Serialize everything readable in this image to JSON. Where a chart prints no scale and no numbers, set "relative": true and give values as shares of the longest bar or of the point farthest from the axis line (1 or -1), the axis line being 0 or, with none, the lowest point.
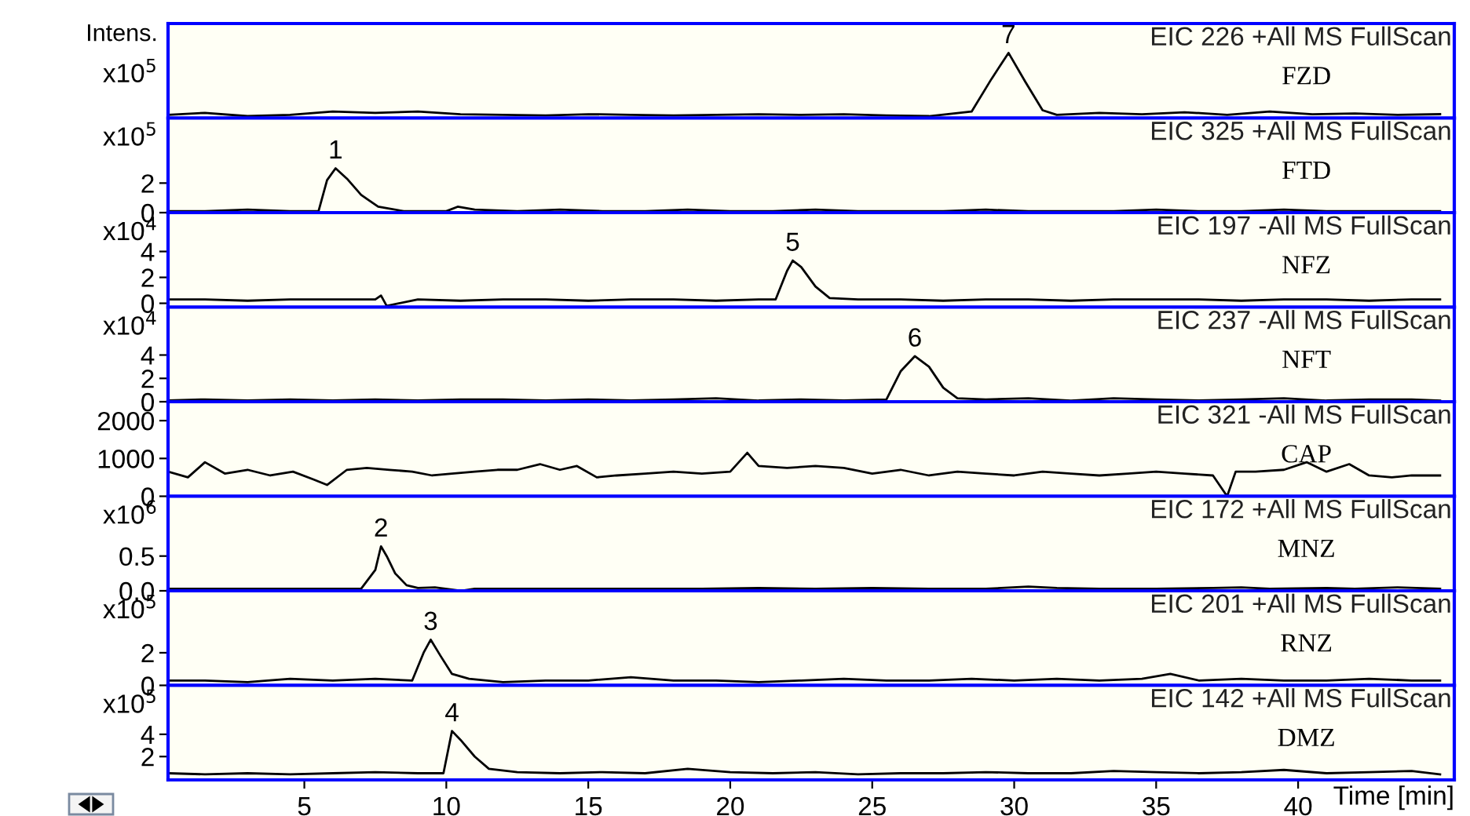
{
  "chart_data": [
    {
      "type": "line",
      "title": "EIC 226 +All MS FullScan",
      "subtitle": "FZD",
      "ylabel": "x10$^{5}$",
      "relative": true,
      "xlim": [
        0.2,
        45.5
      ],
      "tick_labels": false,
      "grid": false,
      "legend": false,
      "annotations": [
        "Intens.",
        {
          "text": "7",
          "x": 29.8,
          "y": 1
        }
      ],
      "series": [
        {
          "color": "#000000",
          "x": [
            0.2,
            1.5,
            3,
            4.5,
            6,
            7.5,
            9,
            10.5,
            12,
            13.5,
            15,
            16.5,
            18,
            19.5,
            21,
            22.5,
            24,
            25.5,
            27,
            28.5,
            29.2,
            29.8,
            30.4,
            31,
            31.5,
            33,
            34.5,
            36,
            37.5,
            39,
            40.5,
            42,
            43.5,
            45
          ],
          "values": [
            0.05,
            0.08,
            0.03,
            0.05,
            0.1,
            0.08,
            0.1,
            0.06,
            0.05,
            0.04,
            0.06,
            0.05,
            0.04,
            0.05,
            0.06,
            0.05,
            0.06,
            0.04,
            0.03,
            0.1,
            0.6,
            1,
            0.55,
            0.12,
            0.05,
            0.08,
            0.06,
            0.09,
            0.05,
            0.1,
            0.06,
            0.07,
            0.05,
            0.06
          ]
        }
      ]
    },
    {
      "type": "line",
      "title": "EIC 325 +All MS FullScan",
      "subtitle": "FTD",
      "ylabel": "x10$^{5}$",
      "xlim": [
        0.2,
        45.5
      ],
      "ylim": [
        0,
        6.4
      ],
      "yticks": [
        0,
        2
      ],
      "tick_labels": "y",
      "grid": false,
      "legend": false,
      "annotations": [
        {
          "text": "1",
          "x": 6.1,
          "y": 3.0
        }
      ],
      "series": [
        {
          "color": "#000000",
          "x": [
            0.2,
            1.5,
            3,
            4.5,
            5.5,
            5.8,
            6.1,
            6.5,
            7,
            7.6,
            8.5,
            10,
            10.4,
            11,
            12.5,
            14,
            15.5,
            17,
            18.5,
            20,
            21.5,
            23,
            24.5,
            26,
            27.5,
            29,
            30.5,
            32,
            33.5,
            35,
            36.5,
            38,
            39.5,
            41,
            42.5,
            44,
            45
          ],
          "values": [
            0.1,
            0.1,
            0.2,
            0.1,
            0.1,
            2.2,
            3.0,
            2.3,
            1.2,
            0.4,
            0.1,
            0.1,
            0.4,
            0.2,
            0.1,
            0.2,
            0.1,
            0.1,
            0.2,
            0.1,
            0.1,
            0.2,
            0.1,
            0.1,
            0.1,
            0.2,
            0.1,
            0.1,
            0.1,
            0.2,
            0.1,
            0.1,
            0.2,
            0.1,
            0.1,
            0.1,
            0.1
          ]
        }
      ]
    },
    {
      "type": "line",
      "title": "EIC 197 -All MS FullScan",
      "subtitle": "NFZ",
      "ylabel": "x10$^{4}$",
      "xlim": [
        0.2,
        45.5
      ],
      "ylim": [
        -0.3,
        7.0
      ],
      "yticks": [
        0,
        2,
        4
      ],
      "tick_labels": "y",
      "grid": false,
      "legend": false,
      "annotations": [
        {
          "text": "5",
          "x": 22.2,
          "y": 3.3
        }
      ],
      "series": [
        {
          "color": "#000000",
          "x": [
            0.2,
            1.5,
            3,
            4.5,
            6,
            7.5,
            7.7,
            7.9,
            9,
            10.5,
            12,
            13.5,
            15,
            16.5,
            18,
            19.5,
            21,
            21.6,
            22,
            22.2,
            22.5,
            23,
            23.5,
            24.5,
            26,
            27.5,
            29,
            30.5,
            32,
            33.5,
            35,
            36.5,
            38,
            39.5,
            41,
            42.5,
            44,
            45
          ],
          "values": [
            0.3,
            0.3,
            0.2,
            0.3,
            0.3,
            0.3,
            0.6,
            -0.2,
            0.3,
            0.2,
            0.3,
            0.3,
            0.2,
            0.3,
            0.3,
            0.2,
            0.3,
            0.3,
            2.5,
            3.3,
            2.8,
            1.3,
            0.4,
            0.3,
            0.3,
            0.2,
            0.3,
            0.3,
            0.2,
            0.3,
            0.3,
            0.3,
            0.2,
            0.3,
            0.3,
            0.2,
            0.3,
            0.3
          ]
        }
      ]
    },
    {
      "type": "line",
      "title": "EIC 237 -All MS FullScan",
      "subtitle": "NFT",
      "ylabel": "x10$^{4}$",
      "xlim": [
        0.2,
        45.5
      ],
      "ylim": [
        0,
        8.1
      ],
      "yticks": [
        0,
        2,
        4
      ],
      "tick_labels": "y",
      "grid": false,
      "legend": false,
      "annotations": [
        {
          "text": "6",
          "x": 26.5,
          "y": 3.9
        }
      ],
      "series": [
        {
          "color": "#000000",
          "x": [
            0.2,
            1.5,
            3,
            4.5,
            6,
            7.5,
            9,
            10.5,
            12,
            13.5,
            15,
            16.5,
            18,
            19.5,
            21,
            22.5,
            24,
            25.5,
            26,
            26.5,
            27,
            27.5,
            28,
            29,
            30.5,
            32,
            33.5,
            35,
            36.5,
            38,
            39.5,
            41,
            42.5,
            44,
            45
          ],
          "values": [
            0.1,
            0.2,
            0.1,
            0.2,
            0.1,
            0.2,
            0.1,
            0.2,
            0.2,
            0.1,
            0.2,
            0.1,
            0.2,
            0.3,
            0.1,
            0.2,
            0.1,
            0.2,
            2.6,
            3.9,
            3.0,
            1.2,
            0.3,
            0.2,
            0.3,
            0.1,
            0.3,
            0.2,
            0.1,
            0.2,
            0.3,
            0.1,
            0.2,
            0.2,
            0.1
          ]
        }
      ]
    },
    {
      "type": "line",
      "title": "EIC 321 -All MS FullScan",
      "subtitle": "CAP",
      "xlim": [
        0.2,
        45.5
      ],
      "ylim": [
        0,
        2500
      ],
      "yticks": [
        0,
        1000,
        2000
      ],
      "tick_labels": "y",
      "grid": false,
      "legend": false,
      "series": [
        {
          "color": "#000000",
          "x": [
            0.2,
            0.9,
            1.5,
            2.2,
            3,
            3.8,
            4.6,
            5.3,
            5.8,
            6.5,
            7.2,
            8,
            8.8,
            9.5,
            10.2,
            11,
            11.8,
            12.5,
            13.3,
            14,
            14.6,
            15.3,
            16,
            17,
            18,
            19,
            20,
            20.6,
            21,
            22,
            23,
            24,
            25,
            26,
            27,
            28,
            29,
            30,
            31,
            32,
            33,
            34,
            35,
            36,
            37,
            37.5,
            37.8,
            38.5,
            39.5,
            40.3,
            41,
            41.8,
            42.5,
            43.3,
            44,
            45
          ],
          "values": [
            650,
            500,
            900,
            600,
            700,
            550,
            650,
            450,
            300,
            700,
            750,
            700,
            650,
            550,
            600,
            650,
            700,
            700,
            850,
            700,
            800,
            500,
            550,
            600,
            650,
            600,
            650,
            1150,
            800,
            750,
            800,
            750,
            600,
            700,
            550,
            650,
            600,
            550,
            650,
            600,
            550,
            600,
            650,
            600,
            550,
            0,
            650,
            650,
            700,
            900,
            650,
            850,
            550,
            500,
            550,
            550
          ]
        }
      ]
    },
    {
      "type": "line",
      "title": "EIC 172 +All MS FullScan",
      "subtitle": "MNZ",
      "ylabel": "x10$^{6}$",
      "xlim": [
        0.2,
        45.5
      ],
      "ylim": [
        0,
        1.36
      ],
      "yticks": [
        {
          "value": 0,
          "label": "0.0"
        },
        0.5
      ],
      "tick_labels": "y",
      "grid": false,
      "legend": false,
      "annotations": [
        {
          "text": "2",
          "x": 7.7,
          "y": 0.64
        }
      ],
      "series": [
        {
          "color": "#000000",
          "x": [
            0.2,
            2,
            4,
            6,
            7,
            7.5,
            7.7,
            7.9,
            8.2,
            8.6,
            9,
            9.6,
            10.5,
            11,
            13,
            15,
            17,
            19,
            21,
            23,
            25,
            27,
            29,
            30.5,
            31.5,
            33,
            35,
            37,
            38,
            39,
            41,
            42,
            43.5,
            45
          ],
          "values": [
            0.03,
            0.03,
            0.03,
            0.03,
            0.03,
            0.3,
            0.64,
            0.5,
            0.25,
            0.08,
            0.04,
            0.05,
            0.0,
            0.03,
            0.03,
            0.03,
            0.03,
            0.03,
            0.04,
            0.03,
            0.04,
            0.03,
            0.03,
            0.06,
            0.04,
            0.03,
            0.03,
            0.04,
            0.05,
            0.03,
            0.04,
            0.03,
            0.05,
            0.03
          ]
        }
      ]
    },
    {
      "type": "line",
      "title": "EIC 201 +All MS FullScan",
      "subtitle": "RNZ",
      "ylabel": "x10$^{5}$",
      "xlim": [
        0.2,
        45.5
      ],
      "ylim": [
        0,
        5.8
      ],
      "yticks": [
        0,
        2
      ],
      "tick_labels": "y",
      "grid": false,
      "legend": false,
      "annotations": [
        {
          "text": "3",
          "x": 9.45,
          "y": 2.8
        }
      ],
      "series": [
        {
          "color": "#000000",
          "x": [
            0.2,
            1.5,
            3,
            4.5,
            6,
            7.5,
            8.8,
            9.2,
            9.45,
            9.8,
            10.2,
            10.8,
            12,
            13.5,
            15,
            16.5,
            18,
            19.5,
            21,
            22.5,
            24,
            25.5,
            27,
            28.5,
            30,
            31.5,
            33,
            34.5,
            35.5,
            36.5,
            38,
            39.5,
            41,
            42.5,
            44,
            45
          ],
          "values": [
            0.3,
            0.3,
            0.2,
            0.4,
            0.3,
            0.4,
            0.3,
            2.0,
            2.8,
            1.8,
            0.7,
            0.4,
            0.2,
            0.3,
            0.3,
            0.5,
            0.3,
            0.3,
            0.2,
            0.3,
            0.4,
            0.3,
            0.3,
            0.4,
            0.3,
            0.4,
            0.3,
            0.4,
            0.7,
            0.3,
            0.4,
            0.3,
            0.3,
            0.4,
            0.3,
            0.3
          ]
        }
      ]
    },
    {
      "type": "line",
      "title": "EIC 142 +All MS FullScan",
      "subtitle": "DMZ",
      "ylabel": "x10$^{5}$",
      "xlabel": "Time [min]",
      "xlim": [
        0.2,
        45.5
      ],
      "xticks": [
        5,
        10,
        15,
        20,
        25,
        30,
        35,
        40
      ],
      "ylim": [
        -0.1,
        8.4
      ],
      "yticks": [
        2,
        4
      ],
      "grid": false,
      "legend": false,
      "annotations": [
        {
          "text": "4",
          "x": 10.2,
          "y": 4.3
        }
      ],
      "series": [
        {
          "color": "#000000",
          "x": [
            0.2,
            1.5,
            3,
            4.5,
            6,
            7.5,
            9,
            9.9,
            10.2,
            10.5,
            11,
            11.5,
            12.5,
            14,
            15.5,
            17,
            18.5,
            20,
            21.5,
            23,
            24.5,
            26,
            27.5,
            29,
            30.5,
            32,
            33.5,
            35,
            36.5,
            38,
            39.5,
            41,
            42.5,
            44,
            45
          ],
          "values": [
            0.5,
            0.4,
            0.5,
            0.4,
            0.5,
            0.6,
            0.5,
            0.5,
            4.3,
            3.5,
            2.0,
            0.9,
            0.6,
            0.5,
            0.6,
            0.5,
            0.9,
            0.6,
            0.5,
            0.6,
            0.4,
            0.5,
            0.5,
            0.6,
            0.5,
            0.5,
            0.7,
            0.6,
            0.5,
            0.6,
            0.8,
            0.5,
            0.6,
            0.7,
            0.4
          ]
        }
      ]
    }
  ]
}
